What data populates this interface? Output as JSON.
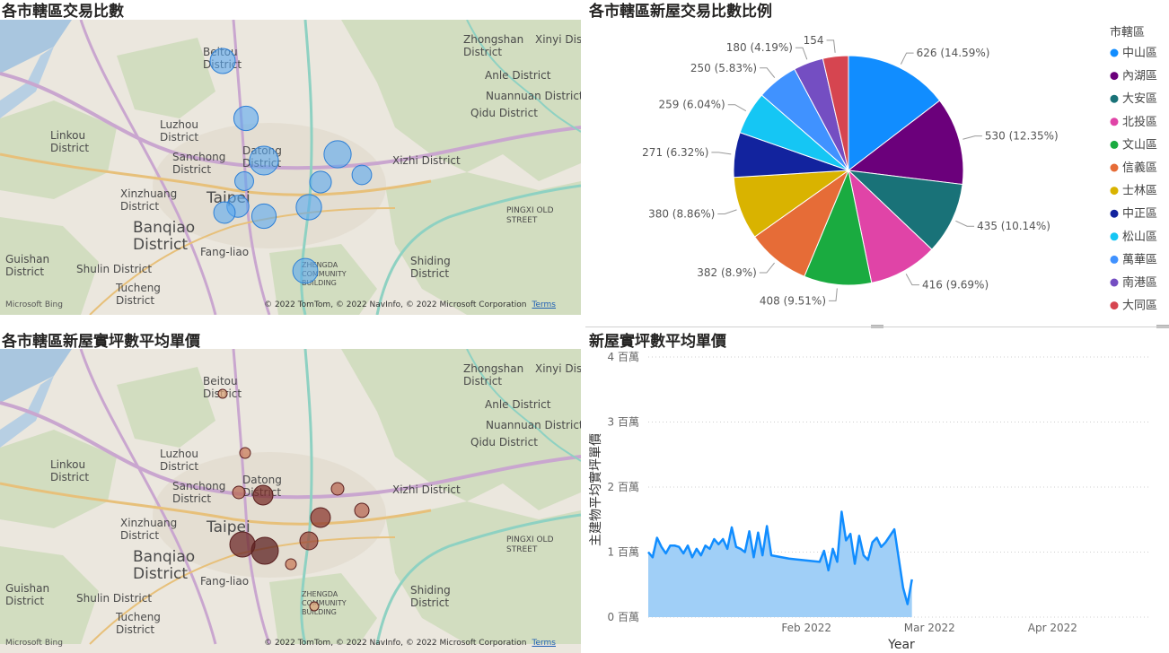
{
  "map_top": {
    "title": "各市轄區交易比數",
    "bubbles": [
      {
        "district": "北投區",
        "value": 416
      },
      {
        "district": "士林區",
        "value": 380
      },
      {
        "district": "中山區",
        "value": 626
      },
      {
        "district": "內湖區",
        "value": 530
      },
      {
        "district": "大同區",
        "value": 154
      },
      {
        "district": "松山區",
        "value": 259
      },
      {
        "district": "南港區",
        "value": 180
      },
      {
        "district": "中正區",
        "value": 271
      },
      {
        "district": "大安區",
        "value": 435
      },
      {
        "district": "信義區",
        "value": 382
      },
      {
        "district": "萬華區",
        "value": 250
      },
      {
        "district": "文山區",
        "value": 408
      }
    ]
  },
  "map_bottom": {
    "title": "各市轄區新屋實坪數平均單價"
  },
  "map_common": {
    "labels": [
      "Zhongshan District",
      "Xinyi District",
      "Beitou District",
      "Anle District",
      "Nuannuan District",
      "Qidu District",
      "Luzhou District",
      "Linkou District",
      "Datong District",
      "Sanchong District",
      "Xizhi District",
      "Xinzhuang District",
      "Taipei",
      "Banqiao District",
      "Fang-liao",
      "PINGXI OLD STREET",
      "Guishan District",
      "Shulin District",
      "Shiding District",
      "Tucheng District",
      "ZHENGDA COMMUNITY BUILDING"
    ],
    "bing": "Microsoft Bing",
    "copyright": "© 2022 TomTom, © 2022 NavInfo, © 2022 Microsoft Corporation",
    "terms": "Terms"
  },
  "pie": {
    "title": "各市轄區新屋交易比數比例",
    "legend_title": "市轄區"
  },
  "line": {
    "title": "新屋實坪數平均單價"
  },
  "chart_data": [
    {
      "type": "pie",
      "title": "各市轄區新屋交易比數比例",
      "legend_title": "市轄區",
      "legend_position": "right",
      "slices": [
        {
          "label": "中山區",
          "value": 626,
          "percent": "14.59%",
          "color": "#118DFF"
        },
        {
          "label": "內湖區",
          "value": 530,
          "percent": "12.35%",
          "color": "#6B007B"
        },
        {
          "label": "大安區",
          "value": 435,
          "percent": "10.14%",
          "color": "#197278"
        },
        {
          "label": "北投區",
          "value": 416,
          "percent": "9.69%",
          "color": "#E044A7"
        },
        {
          "label": "文山區",
          "value": 408,
          "percent": "9.51%",
          "color": "#1AAB40"
        },
        {
          "label": "信義區",
          "value": 382,
          "percent": "8.9%",
          "color": "#E66C37"
        },
        {
          "label": "士林區",
          "value": 380,
          "percent": "8.86%",
          "color": "#D9B300"
        },
        {
          "label": "中正區",
          "value": 271,
          "percent": "6.32%",
          "color": "#12239E"
        },
        {
          "label": "松山區",
          "value": 259,
          "percent": "6.04%",
          "color": "#15C6F4"
        },
        {
          "label": "萬華區",
          "value": 250,
          "percent": "5.83%",
          "color": "#4092FF"
        },
        {
          "label": "南港區",
          "value": 180,
          "percent": "4.19%",
          "color": "#744EC2"
        },
        {
          "label": "大同區",
          "value": 154,
          "percent": "3.59%",
          "color": "#D64550"
        }
      ]
    },
    {
      "type": "area",
      "title": "新屋實坪數平均單價",
      "xlabel": "Year",
      "ylabel": "主建物平均實坪單價",
      "ylim": [
        0,
        4000000
      ],
      "yticks": [
        {
          "value": 0,
          "label": "0 百萬"
        },
        {
          "value": 1000000,
          "label": "1 百萬"
        },
        {
          "value": 2000000,
          "label": "2 百萬"
        },
        {
          "value": 3000000,
          "label": "3 百萬"
        },
        {
          "value": 4000000,
          "label": "4 百萬"
        }
      ],
      "xlim": [
        "2022-01-01",
        "2022-04-25"
      ],
      "xticks": [
        {
          "date": "2022-02-06",
          "label": "Feb 2022"
        },
        {
          "date": "2022-03-06",
          "label": "Mar 2022"
        },
        {
          "date": "2022-04-03",
          "label": "Apr 2022"
        }
      ],
      "grid": true,
      "color": "#118DFF",
      "fill": "#A0CFF7",
      "points": [
        [
          "2022-01-01",
          1.0
        ],
        [
          "2022-01-02",
          0.92
        ],
        [
          "2022-01-03",
          1.22
        ],
        [
          "2022-01-04",
          1.08
        ],
        [
          "2022-01-05",
          0.98
        ],
        [
          "2022-01-06",
          1.1
        ],
        [
          "2022-01-07",
          1.1
        ],
        [
          "2022-01-08",
          1.08
        ],
        [
          "2022-01-09",
          0.98
        ],
        [
          "2022-01-10",
          1.1
        ],
        [
          "2022-01-11",
          0.92
        ],
        [
          "2022-01-12",
          1.05
        ],
        [
          "2022-01-13",
          0.95
        ],
        [
          "2022-01-14",
          1.1
        ],
        [
          "2022-01-15",
          1.05
        ],
        [
          "2022-01-16",
          1.2
        ],
        [
          "2022-01-17",
          1.12
        ],
        [
          "2022-01-18",
          1.2
        ],
        [
          "2022-01-19",
          1.05
        ],
        [
          "2022-01-20",
          1.38
        ],
        [
          "2022-01-21",
          1.08
        ],
        [
          "2022-01-22",
          1.05
        ],
        [
          "2022-01-23",
          1.0
        ],
        [
          "2022-01-24",
          1.32
        ],
        [
          "2022-01-25",
          0.92
        ],
        [
          "2022-01-26",
          1.3
        ],
        [
          "2022-01-27",
          0.95
        ],
        [
          "2022-01-28",
          1.4
        ],
        [
          "2022-01-29",
          0.95
        ],
        [
          "2022-02-02",
          0.9
        ],
        [
          "2022-02-09",
          0.85
        ],
        [
          "2022-02-10",
          1.02
        ],
        [
          "2022-02-11",
          0.72
        ],
        [
          "2022-02-12",
          1.05
        ],
        [
          "2022-02-13",
          0.85
        ],
        [
          "2022-02-14",
          1.62
        ],
        [
          "2022-02-15",
          1.18
        ],
        [
          "2022-02-16",
          1.28
        ],
        [
          "2022-02-17",
          0.82
        ],
        [
          "2022-02-18",
          1.25
        ],
        [
          "2022-02-19",
          0.95
        ],
        [
          "2022-02-20",
          0.88
        ],
        [
          "2022-02-21",
          1.15
        ],
        [
          "2022-02-22",
          1.22
        ],
        [
          "2022-02-23",
          1.08
        ],
        [
          "2022-02-24",
          1.15
        ],
        [
          "2022-02-25",
          1.25
        ],
        [
          "2022-02-26",
          1.35
        ],
        [
          "2022-02-27",
          0.9
        ],
        [
          "2022-02-28",
          0.45
        ],
        [
          "2022-03-01",
          0.2
        ],
        [
          "2022-03-02",
          0.58
        ]
      ]
    }
  ]
}
